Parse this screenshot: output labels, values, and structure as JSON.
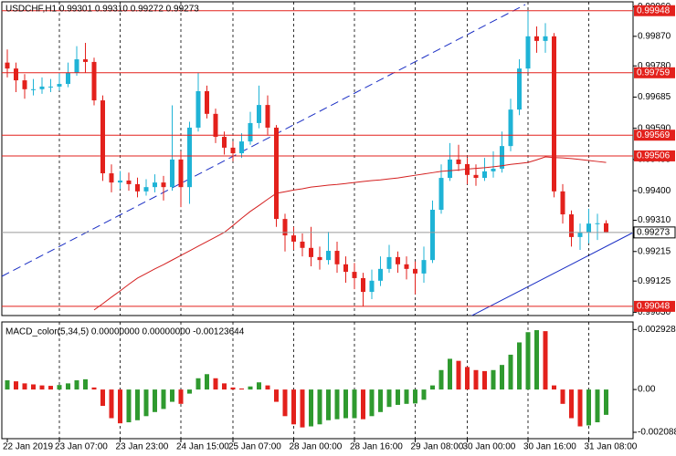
{
  "chart_data": [
    {
      "type": "candlestick",
      "title": "USDCHF,H1  0.99301 0.99310 0.99272 0.99273",
      "categories": [
        "22 Jan 2019",
        null,
        null,
        null,
        null,
        null,
        "23 Jan 07:00",
        null,
        null,
        null,
        null,
        null,
        null,
        "23 Jan 23:00",
        null,
        null,
        null,
        null,
        null,
        null,
        "24 Jan 15:00",
        null,
        null,
        null,
        null,
        null,
        "25 Jan 07:00",
        null,
        null,
        null,
        null,
        null,
        null,
        "28 Jan 00:00",
        null,
        null,
        null,
        null,
        null,
        null,
        "28 Jan 16:00",
        null,
        null,
        null,
        null,
        null,
        null,
        "29 Jan 08:00",
        null,
        null,
        null,
        null,
        null,
        "30 Jan 00:00",
        null,
        null,
        null,
        null,
        null,
        null,
        "30 Jan 16:00",
        null,
        null,
        null,
        null,
        null,
        null,
        "31 Jan 08:00",
        null,
        null
      ],
      "open": [
        0.9979,
        0.99772,
        0.99736,
        0.99709,
        0.99709,
        0.99717,
        0.99717,
        0.99725,
        0.99759,
        0.998,
        0.99792,
        0.99675,
        0.99453,
        0.99425,
        0.99431,
        0.9942,
        0.99398,
        0.99411,
        0.99425,
        0.99411,
        0.99495,
        0.99411,
        0.99592,
        0.99703,
        0.99634,
        0.99564,
        0.99531,
        0.99514,
        0.9955,
        0.99606,
        0.99661,
        0.99592,
        0.99314,
        0.99264,
        0.99245,
        0.99226,
        0.99198,
        0.99189,
        0.99217,
        0.99176,
        0.99153,
        0.99134,
        0.99092,
        0.99126,
        0.99162,
        0.99198,
        0.99176,
        0.99162,
        0.99148,
        0.99189,
        0.99342,
        0.99439,
        0.99495,
        0.99481,
        0.99448,
        0.99439,
        0.99459,
        0.99467,
        0.99536,
        0.99647,
        0.99772,
        0.9987,
        0.99856,
        0.9987,
        0.99398,
        0.99328,
        0.99259,
        0.99273,
        0.993,
        0.99301
      ],
      "high": [
        0.9983,
        0.9979,
        0.99755,
        0.9974,
        0.99745,
        0.9974,
        0.9976,
        0.9979,
        0.9984,
        0.9985,
        0.99805,
        0.9969,
        0.9948,
        0.9946,
        0.99455,
        0.9944,
        0.99435,
        0.9945,
        0.99445,
        0.9966,
        0.9952,
        0.9961,
        0.9976,
        0.9972,
        0.9965,
        0.9958,
        0.9955,
        0.99575,
        0.9964,
        0.9972,
        0.9969,
        0.996,
        0.9933,
        0.9929,
        0.9927,
        0.9929,
        0.9923,
        0.99275,
        0.99245,
        0.992,
        0.9918,
        0.9915,
        0.9916,
        0.992,
        0.99235,
        0.99215,
        0.992,
        0.99185,
        0.9923,
        0.9937,
        0.9948,
        0.99545,
        0.9954,
        0.995,
        0.9948,
        0.995,
        0.9952,
        0.9958,
        0.9968,
        0.998,
        0.99948,
        0.999,
        0.9991,
        0.9988,
        0.9942,
        0.9934,
        0.993,
        0.99345,
        0.9933,
        0.9931
      ],
      "low": [
        0.99745,
        0.997,
        0.9968,
        0.9969,
        0.99695,
        0.997,
        0.99705,
        0.99715,
        0.9975,
        0.9976,
        0.9966,
        0.9943,
        0.99395,
        0.99405,
        0.994,
        0.9938,
        0.99385,
        0.99395,
        0.9937,
        0.994,
        0.9935,
        0.9936,
        0.9958,
        0.9962,
        0.99545,
        0.9951,
        0.9949,
        0.995,
        0.9954,
        0.9959,
        0.9957,
        0.9929,
        0.99215,
        0.9922,
        0.992,
        0.9917,
        0.9916,
        0.99175,
        0.9915,
        0.9912,
        0.991,
        0.99048,
        0.9907,
        0.9911,
        0.9915,
        0.9915,
        0.9913,
        0.99085,
        0.9912,
        0.9918,
        0.9933,
        0.9943,
        0.9946,
        0.9942,
        0.99415,
        0.9943,
        0.9944,
        0.99455,
        0.9952,
        0.9963,
        0.9976,
        0.9982,
        0.9982,
        0.9938,
        0.993,
        0.9923,
        0.9922,
        0.9924,
        0.9925,
        0.99272
      ],
      "close": [
        0.99772,
        0.99736,
        0.99709,
        0.99709,
        0.99717,
        0.99717,
        0.99725,
        0.99759,
        0.998,
        0.99792,
        0.99675,
        0.99453,
        0.99425,
        0.99431,
        0.9942,
        0.99398,
        0.99411,
        0.99425,
        0.99411,
        0.99495,
        0.99411,
        0.99592,
        0.99703,
        0.99634,
        0.99564,
        0.99531,
        0.99514,
        0.9955,
        0.99606,
        0.99661,
        0.99592,
        0.99314,
        0.99264,
        0.99245,
        0.99226,
        0.99198,
        0.99189,
        0.99217,
        0.99176,
        0.99153,
        0.99134,
        0.99092,
        0.99126,
        0.99162,
        0.99198,
        0.99176,
        0.99162,
        0.99148,
        0.99189,
        0.99342,
        0.99439,
        0.99495,
        0.99481,
        0.99448,
        0.99439,
        0.99459,
        0.99467,
        0.99536,
        0.99647,
        0.99772,
        0.9987,
        0.99856,
        0.9987,
        0.99398,
        0.99328,
        0.99259,
        0.99273,
        0.993,
        0.99301,
        0.99273
      ],
      "moving_average": [
        null,
        null,
        null,
        null,
        null,
        null,
        null,
        null,
        null,
        null,
        0.99037,
        0.99056,
        0.99076,
        0.99095,
        0.99115,
        0.99134,
        0.99148,
        0.99162,
        0.99175,
        0.99189,
        0.99203,
        0.99217,
        0.99231,
        0.99245,
        0.99259,
        0.99273,
        0.99294,
        0.99316,
        0.99337,
        0.99355,
        0.99374,
        0.99392,
        0.99397,
        0.99402,
        0.99406,
        0.99411,
        0.99414,
        0.99417,
        0.99419,
        0.99422,
        0.99425,
        0.99428,
        0.99431,
        0.99433,
        0.99436,
        0.99439,
        0.99443,
        0.99447,
        0.99451,
        0.99455,
        0.99459,
        0.99461,
        0.99463,
        0.99466,
        0.99468,
        0.9947,
        0.99473,
        0.99476,
        0.9948,
        0.99483,
        0.99486,
        0.99494,
        0.99503,
        0.99501,
        0.995,
        0.99498,
        0.99495,
        0.99492,
        0.99489,
        0.99486
      ],
      "levels": [
        0.99948,
        0.99759,
        0.99569,
        0.99506,
        0.99048
      ],
      "current_price": 0.99273,
      "up_color": "#1fb3d6",
      "down_color": "#e3211c",
      "ma_color": "#d42020",
      "level_color": "#e3211c",
      "current_color": "#9a9a9a",
      "ylim": [
        0.9902,
        0.99975
      ],
      "yticks": [
        {
          "value": 0.9996,
          "label": "0.99960"
        },
        {
          "value": 0.9987,
          "label": "0.99870"
        },
        {
          "value": 0.9978,
          "label": "0.99780"
        },
        0.99685,
        {
          "value": 0.9959,
          "label": "0.99590"
        },
        0.99495,
        {
          "value": 0.994,
          "label": "0.99400"
        },
        {
          "value": 0.9931,
          "label": "0.99310"
        },
        0.99215,
        0.99125,
        {
          "value": 0.9903,
          "label": "0.99030"
        }
      ],
      "grid": "vertical"
    },
    {
      "type": "histogram",
      "title": "MACD_color(5,34,5) 0.00000000 0.00000000 -0.00123644",
      "values": [
        0.00045,
        0.0004,
        0.0003,
        0.00025,
        0.0002,
        0.00018,
        0.00022,
        0.0003,
        0.00045,
        0.0005,
        0.0001,
        -0.0008,
        -0.0014,
        -0.00165,
        -0.0016,
        -0.0015,
        -0.0013,
        -0.0011,
        -0.00095,
        -0.0006,
        -0.0007,
        -0.0002,
        0.00055,
        0.00075,
        0.00055,
        0.0003,
        0.0001,
        5e-05,
        0.00015,
        0.00035,
        0.0002,
        -0.0006,
        -0.0013,
        -0.0017,
        -0.00185,
        -0.0018,
        -0.0017,
        -0.0015,
        -0.00145,
        -0.0014,
        -0.0014,
        -0.00145,
        -0.0013,
        -0.0011,
        -0.00085,
        -0.00075,
        -0.0007,
        -0.00068,
        -0.0005,
        0.0002,
        0.00095,
        0.0015,
        0.0014,
        0.0011,
        0.00095,
        0.0009,
        0.00095,
        0.0012,
        0.0017,
        0.0023,
        0.0028,
        0.0029,
        0.00285,
        0.0002,
        -0.0007,
        -0.0014,
        -0.0018,
        -0.00175,
        -0.0016,
        -0.00123644
      ],
      "up_color": "#2f9a2f",
      "down_color": "#e3211c",
      "ylim": [
        -0.0024,
        0.0033
      ],
      "yticks": [
        0.0029283,
        {
          "value": 0,
          "label": "0.00"
        },
        -0.002088
      ]
    }
  ]
}
